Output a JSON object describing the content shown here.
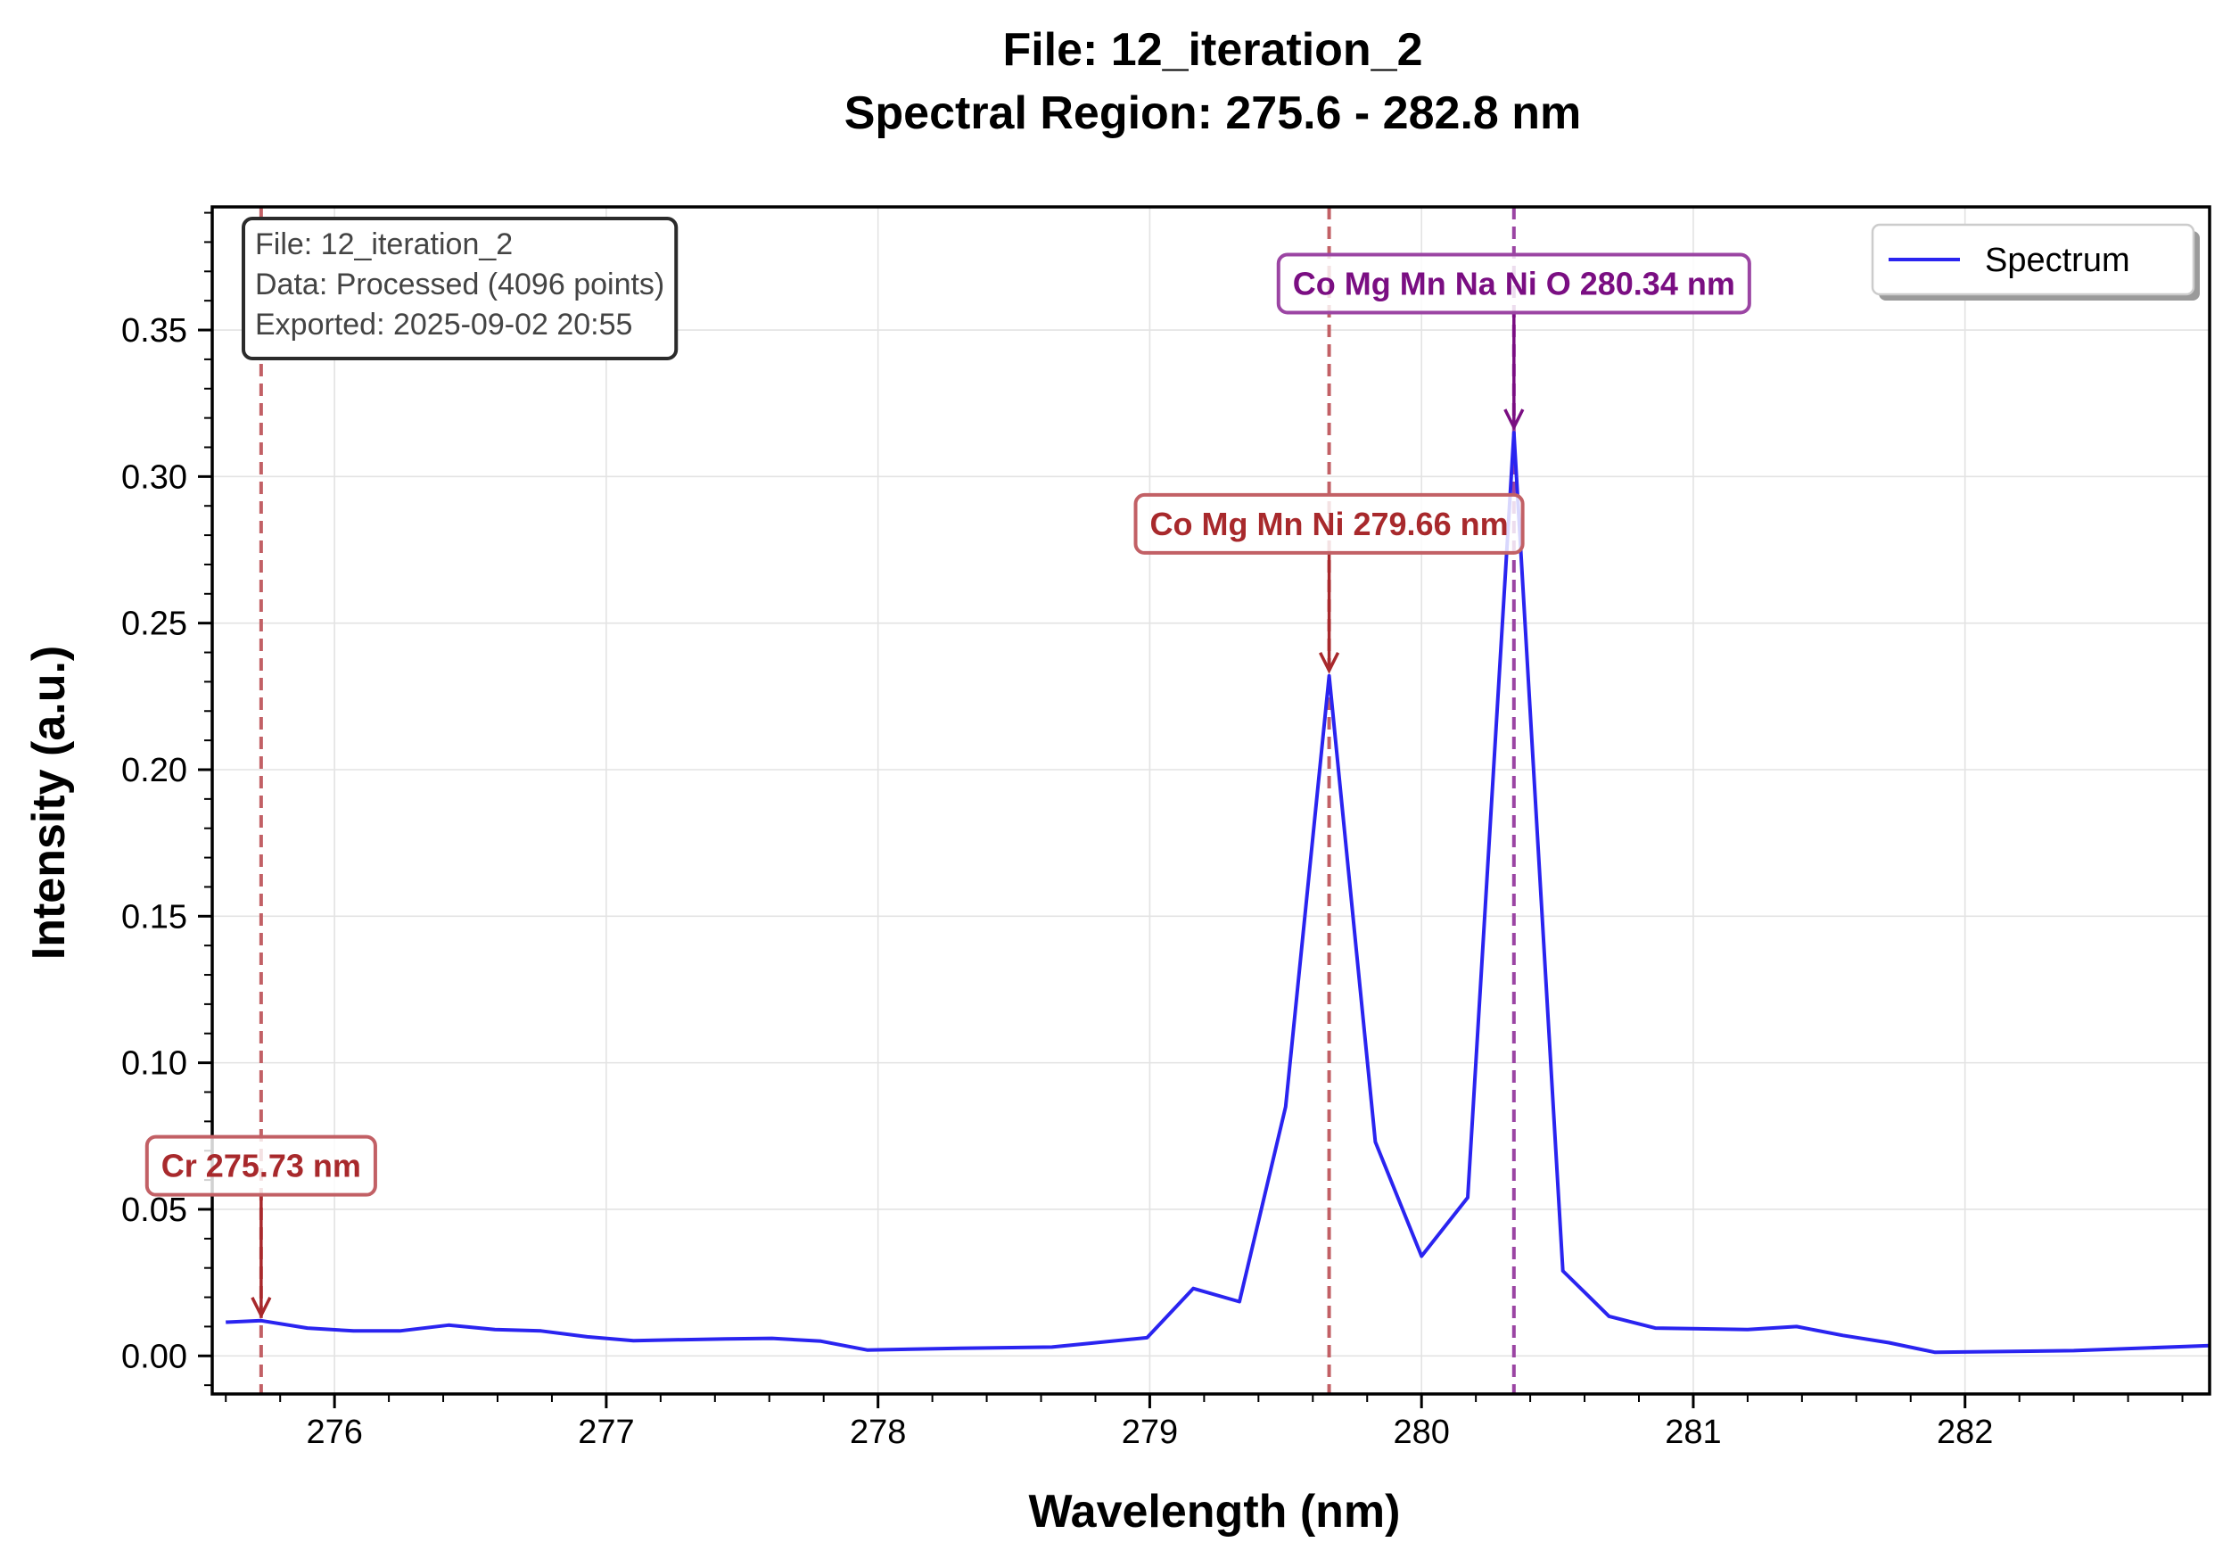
{
  "chart_data": {
    "type": "line",
    "title_line1": "File: 12_iteration_2",
    "title_line2": "Spectral Region: 275.6 - 282.8 nm",
    "xlabel": "Wavelength (nm)",
    "ylabel": "Intensity (a.u.)",
    "xlim": [
      275.55,
      282.9
    ],
    "ylim": [
      -0.013,
      0.392
    ],
    "xticks": [
      276,
      277,
      278,
      279,
      280,
      281,
      282
    ],
    "xtick_labels": [
      "276",
      "277",
      "278",
      "279",
      "280",
      "281",
      "282"
    ],
    "yticks": [
      0.0,
      0.05,
      0.1,
      0.15,
      0.2,
      0.25,
      0.3,
      0.35
    ],
    "ytick_labels": [
      "0.00",
      "0.05",
      "0.10",
      "0.15",
      "0.20",
      "0.25",
      "0.30",
      "0.35"
    ],
    "grid": true,
    "legend_position": "top-right",
    "series": [
      {
        "name": "Spectrum",
        "color": "#2a24f0",
        "x": [
          275.6,
          275.73,
          275.9,
          276.07,
          276.24,
          276.42,
          276.59,
          276.76,
          276.93,
          277.1,
          277.44,
          277.61,
          277.79,
          277.96,
          278.3,
          278.64,
          278.99,
          279.16,
          279.33,
          279.5,
          279.66,
          279.83,
          280.0,
          280.17,
          280.34,
          280.52,
          280.69,
          280.86,
          281.2,
          281.38,
          281.55,
          281.72,
          281.89,
          282.4,
          282.9
        ],
        "y": [
          0.0115,
          0.012,
          0.0095,
          0.0085,
          0.0085,
          0.0105,
          0.009,
          0.0085,
          0.0065,
          0.0052,
          0.0058,
          0.006,
          0.005,
          0.002,
          0.0026,
          0.003,
          0.0062,
          0.023,
          0.0185,
          0.085,
          0.232,
          0.073,
          0.034,
          0.054,
          0.315,
          0.029,
          0.0135,
          0.0095,
          0.009,
          0.01,
          0.007,
          0.0045,
          0.0012,
          0.0018,
          0.0035
        ]
      }
    ],
    "annotations": [
      {
        "label": "Cr 275.73 nm",
        "x": 275.73,
        "peak_y": 0.012,
        "label_y": 0.065,
        "color": "#a8292c",
        "line_color": "#c26065"
      },
      {
        "label": "Co Mg Mn Ni 279.66 nm",
        "x": 279.66,
        "peak_y": 0.232,
        "label_y": 0.284,
        "color": "#a8292c",
        "line_color": "#c26065"
      },
      {
        "label": "Co Mg Mn Na Ni O 280.34 nm",
        "x": 280.34,
        "peak_y": 0.315,
        "label_y": 0.366,
        "color": "#7a0e82",
        "line_color": "#9b45a3"
      }
    ],
    "info_box": {
      "lines": [
        "File: 12_iteration_2",
        "Data: Processed (4096 points)",
        "Exported: 2025-09-02 20:55"
      ],
      "position": "top-left"
    }
  }
}
